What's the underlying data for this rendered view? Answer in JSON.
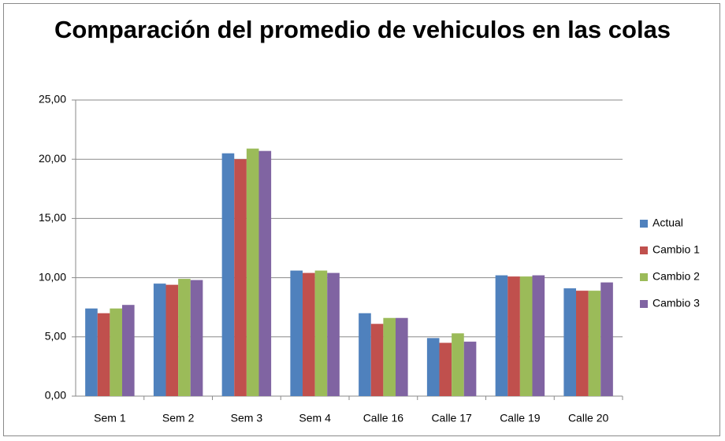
{
  "chart_data": {
    "type": "bar",
    "title": "Comparación del promedio de vehiculos en las colas",
    "categories": [
      "Sem 1",
      "Sem 2",
      "Sem 3",
      "Sem 4",
      "Calle 16",
      "Calle 17",
      "Calle 19",
      "Calle 20"
    ],
    "series": [
      {
        "name": "Actual",
        "color": "#4f81bd",
        "values": [
          7.4,
          9.5,
          20.5,
          10.6,
          7.0,
          4.9,
          10.2,
          9.1
        ]
      },
      {
        "name": "Cambio 1",
        "color": "#c0504d",
        "values": [
          7.0,
          9.4,
          20.0,
          10.4,
          6.1,
          4.5,
          10.1,
          8.9
        ]
      },
      {
        "name": "Cambio 2",
        "color": "#9bbb59",
        "values": [
          7.4,
          9.9,
          20.9,
          10.6,
          6.6,
          5.3,
          10.1,
          8.9
        ]
      },
      {
        "name": "Cambio 3",
        "color": "#8064a2",
        "values": [
          7.7,
          9.8,
          20.7,
          10.4,
          6.6,
          4.6,
          10.2,
          9.6
        ]
      }
    ],
    "ylim": [
      0,
      25
    ],
    "yticks": [
      {
        "value": 0,
        "label": "0,00"
      },
      {
        "value": 5,
        "label": "5,00"
      },
      {
        "value": 10,
        "label": "10,00"
      },
      {
        "value": 15,
        "label": "15,00"
      },
      {
        "value": 20,
        "label": "20,00"
      },
      {
        "value": 25,
        "label": "25,00"
      }
    ],
    "grid": true,
    "legend": "right"
  }
}
